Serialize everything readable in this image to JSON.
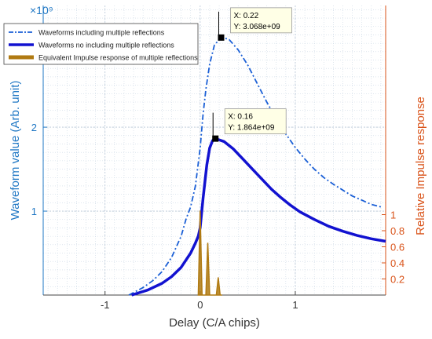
{
  "chart_data": {
    "type": "line",
    "xlabel": "Delay (C/A chips)",
    "ylabel_left": "Waveform value (Arb. unit)",
    "ylabel_right": "Relative Impulse response",
    "y_exponent_label": "×10⁹",
    "xlim": [
      -1.65,
      1.95
    ],
    "ylim_left": [
      0,
      3.45
    ],
    "ylim_right": [
      0,
      3.6
    ],
    "x_ticks": [
      -1,
      0,
      1
    ],
    "x_tick_labels": [
      "-1",
      "0",
      "1"
    ],
    "y_left_ticks": [
      1,
      2
    ],
    "y_left_tick_labels": [
      "1",
      "2"
    ],
    "y_right_ticks": [
      0.2,
      0.4,
      0.6,
      0.8,
      1
    ],
    "y_right_tick_labels": [
      "0.2",
      "0.4",
      "0.6",
      "0.8",
      "1"
    ],
    "grid": true,
    "legend_position": "top-left",
    "colors": {
      "left_axis": "#1f77c4",
      "right_axis": "#d95319",
      "grid": "#c9d6e3"
    },
    "series": [
      {
        "name": "Waveforms including multiple reflections",
        "axis": "left",
        "style": "dashdot",
        "color": "#1a5fd6",
        "x": [
          -0.75,
          -0.6,
          -0.5,
          -0.4,
          -0.3,
          -0.2,
          -0.15,
          -0.1,
          -0.05,
          0.0,
          0.03,
          0.06,
          0.1,
          0.15,
          0.22,
          0.3,
          0.4,
          0.5,
          0.6,
          0.7,
          0.8,
          0.9,
          1.0,
          1.1,
          1.2,
          1.3,
          1.4,
          1.5,
          1.6,
          1.7,
          1.8,
          1.9
        ],
        "y": [
          0.0,
          0.09,
          0.17,
          0.28,
          0.45,
          0.7,
          0.9,
          1.05,
          1.3,
          1.75,
          2.15,
          2.45,
          2.75,
          2.98,
          3.068,
          3.05,
          2.92,
          2.74,
          2.52,
          2.3,
          2.1,
          1.92,
          1.76,
          1.62,
          1.5,
          1.4,
          1.32,
          1.25,
          1.18,
          1.13,
          1.08,
          1.05
        ]
      },
      {
        "name": "Waveforms no including multiple reflections",
        "axis": "left",
        "style": "solid",
        "color": "#1212d0",
        "x": [
          -0.72,
          -0.55,
          -0.4,
          -0.3,
          -0.2,
          -0.1,
          -0.05,
          -0.02,
          0.0,
          0.03,
          0.07,
          0.1,
          0.13,
          0.16,
          0.25,
          0.35,
          0.45,
          0.55,
          0.65,
          0.75,
          0.85,
          0.95,
          1.05,
          1.2,
          1.35,
          1.5,
          1.65,
          1.8,
          1.95
        ],
        "y": [
          0.0,
          0.06,
          0.14,
          0.22,
          0.33,
          0.5,
          0.62,
          0.7,
          0.8,
          1.15,
          1.55,
          1.75,
          1.84,
          1.864,
          1.83,
          1.74,
          1.62,
          1.5,
          1.38,
          1.26,
          1.16,
          1.07,
          0.99,
          0.9,
          0.82,
          0.76,
          0.71,
          0.67,
          0.64
        ]
      },
      {
        "name": "Equivalent Impulse response of multiple reflections",
        "axis": "right",
        "style": "area",
        "color": "#b07a12",
        "x": [
          -0.02,
          0.0,
          0.02,
          0.04,
          0.06,
          0.08,
          0.1,
          0.15,
          0.17,
          0.19,
          0.21,
          0.23
        ],
        "y": [
          0.0,
          1.05,
          0.0,
          0.0,
          0.0,
          0.65,
          0.0,
          0.0,
          0.0,
          0.22,
          0.0,
          0.0
        ]
      }
    ],
    "annotations": [
      {
        "x": 0.22,
        "y": 3.068,
        "label_x": "X: 0.22",
        "label_y": "Y: 3.068e+09"
      },
      {
        "x": 0.16,
        "y": 1.864,
        "label_x": "X: 0.16",
        "label_y": "Y: 1.864e+09"
      }
    ]
  }
}
